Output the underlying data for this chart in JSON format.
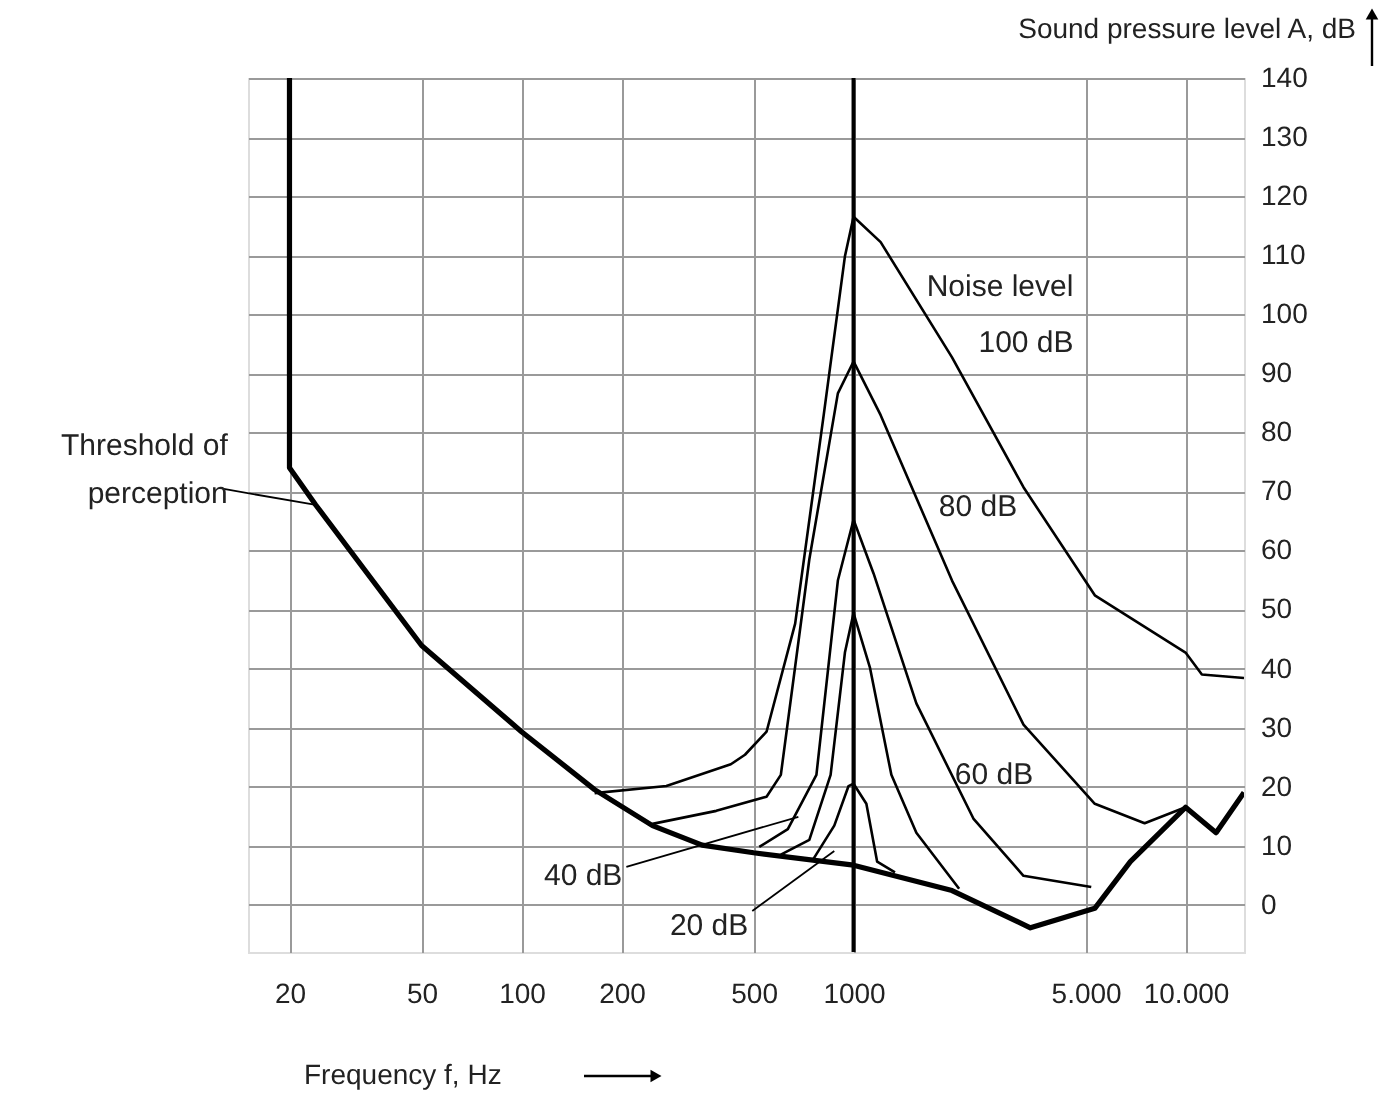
{
  "chart_data": {
    "type": "line",
    "xlabel": "Frequency f, Hz",
    "ylabel": "Sound pressure level A, dB",
    "log": "x",
    "xlim": [
      15,
      15000
    ],
    "ylim": [
      -8,
      140
    ],
    "xticks": [
      20,
      50,
      100,
      200,
      500,
      1000,
      {
        "value": 5000,
        "label": "5.000"
      },
      {
        "value": 10000,
        "label": "10.000"
      }
    ],
    "yticks": [
      0,
      10,
      20,
      30,
      40,
      50,
      60,
      70,
      80,
      90,
      100,
      110,
      120,
      130,
      140
    ],
    "grid": true,
    "line_style": "solid",
    "marker": "none",
    "series": [
      {
        "color": "#000000",
        "x": [
          20,
          20,
          24,
          50,
          100,
          166,
          248,
          350,
          500,
          1000,
          1980,
          3410,
          5330,
          6820,
          10000,
          12360,
          15000
        ],
        "values": [
          140,
          74,
          67.7,
          43.9,
          29.3,
          19.5,
          13.4,
          10.1,
          8.8,
          6.7,
          2.4,
          -3.9,
          -0.6,
          7.3,
          16.5,
          12.2,
          19
        ]
      },
      {
        "color": "#000000",
        "x": [
          754,
          875,
          966,
          1000,
          1093,
          1178,
          1333
        ],
        "values": [
          7.6,
          13.4,
          20.1,
          20.5,
          17.1,
          7.3,
          5.5
        ]
      },
      {
        "color": "#000000",
        "x": [
          604,
          736,
          853,
          942,
          1000,
          1120,
          1300,
          1546,
          2080
        ],
        "values": [
          8.5,
          11,
          22,
          42.7,
          49.4,
          40.2,
          22,
          12.2,
          2.7
        ]
      },
      {
        "color": "#000000",
        "x": [
          520,
          634,
          773,
          897,
          1000,
          1149,
          1546,
          2296,
          3250,
          5200
        ],
        "values": [
          9.8,
          12.8,
          22,
          54.9,
          65.2,
          56.1,
          34.1,
          14.6,
          4.9,
          3
        ]
      },
      {
        "color": "#000000",
        "x": [
          248,
          386,
          547,
          604,
          736,
          897,
          1000,
          1207,
          1980,
          3250,
          5330,
          7530,
          10000
        ],
        "values": [
          13.7,
          15.9,
          18.3,
          22,
          58.5,
          86.6,
          92,
          82.9,
          54.9,
          30.5,
          17.1,
          13.8,
          16.5
        ]
      },
      {
        "color": "#000000",
        "x": [
          166,
          273,
          427,
          471,
          547,
          667,
          813,
          942,
          1000,
          1207,
          1980,
          3250,
          5330,
          10000,
          11200,
          15000
        ],
        "values": [
          18.9,
          20.1,
          23.8,
          25.4,
          29.3,
          47.6,
          82.9,
          109.8,
          116.5,
          112.2,
          92.7,
          70.7,
          52.4,
          42.7,
          39,
          38.4
        ]
      }
    ],
    "ref_lines": [
      {
        "axis": "x",
        "value": 1000,
        "color": "#000000"
      }
    ],
    "annotations": [
      {
        "text": "Threshold of\nperception",
        "x": 24,
        "y": 67.7
      },
      {
        "text": "40 dB",
        "x": 682,
        "y": 14.9
      },
      {
        "text": "20 dB",
        "x": 875,
        "y": 9.1
      },
      "Noise level",
      "100 dB",
      "80 dB",
      "60 dB"
    ]
  }
}
